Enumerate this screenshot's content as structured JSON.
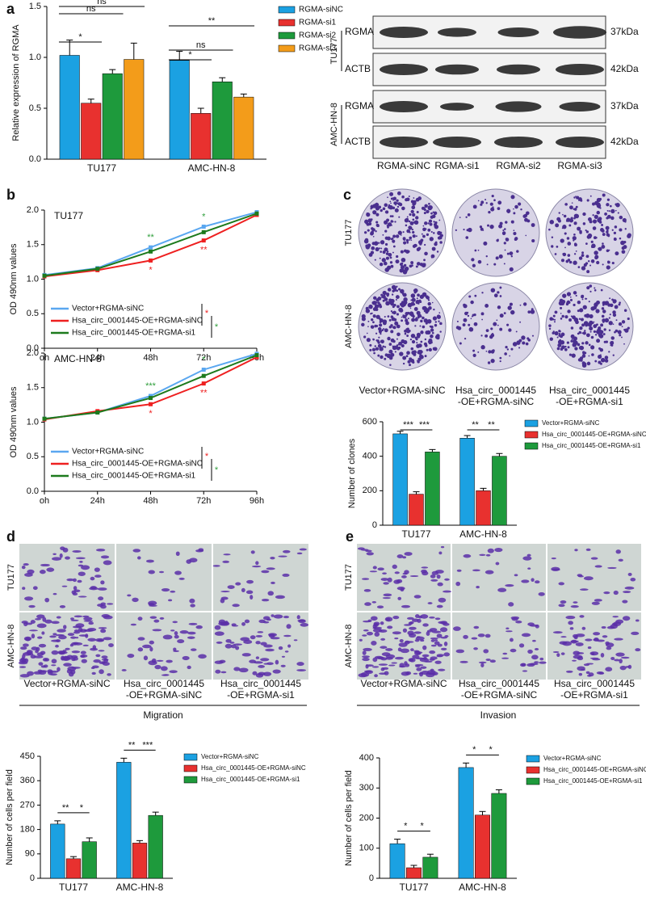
{
  "panel_labels": [
    "a",
    "b",
    "c",
    "d",
    "e"
  ],
  "western_blot": {
    "rows": [
      {
        "cell": "TU177",
        "proteins": [
          {
            "name": "RGMA",
            "size": "37kDa"
          },
          {
            "name": "ACTB",
            "size": "42kDa"
          }
        ]
      },
      {
        "cell": "AMC-HN-8",
        "proteins": [
          {
            "name": "RGMA",
            "size": "37kDa"
          },
          {
            "name": "ACTB",
            "size": "42kDa"
          }
        ]
      }
    ],
    "lanes": [
      "RGMA-siNC",
      "RGMA-si1",
      "RGMA-si2",
      "RGMA-si3"
    ]
  },
  "colony_images": {
    "rows": [
      "TU177",
      "AMC-HN-8"
    ],
    "columns": [
      [
        "Vector+RGMA-siNC"
      ],
      [
        "Hsa_circ_0001445",
        "-OE+RGMA-siNC"
      ],
      [
        "Hsa_circ_0001445",
        "-OE+RGMA-si1"
      ]
    ]
  },
  "migration_images": {
    "rows": [
      "TU177",
      "AMC-HN-8"
    ],
    "columns": [
      [
        "Vector+RGMA-siNC"
      ],
      [
        "Hsa_circ_0001445",
        "-OE+RGMA-siNC"
      ],
      [
        "Hsa_circ_0001445",
        "-OE+RGMA-si1"
      ]
    ]
  },
  "invasion_images": {
    "rows": [
      "TU177",
      "AMC-HN-8"
    ],
    "columns": [
      [
        "Vector+RGMA-siNC"
      ],
      [
        "Hsa_circ_0001445",
        "-OE+RGMA-siNC"
      ],
      [
        "Hsa_circ_0001445",
        "-OE+RGMA-si1"
      ]
    ]
  },
  "chart_data": [
    {
      "type": "bar",
      "ylabel": "Relative expression of RGMA",
      "categories": [
        "TU177",
        "AMC-HN-8"
      ],
      "series": [
        {
          "name": "RGMA-siNC",
          "color": "#1ba1e2",
          "values": [
            1.02,
            0.97
          ],
          "errors": [
            0.15,
            0.09
          ]
        },
        {
          "name": "RGMA-si1",
          "color": "#e8312f",
          "values": [
            0.55,
            0.45
          ],
          "errors": [
            0.04,
            0.05
          ]
        },
        {
          "name": "RGMA-si2",
          "color": "#1e9a3c",
          "values": [
            0.84,
            0.76
          ],
          "errors": [
            0.04,
            0.04
          ]
        },
        {
          "name": "RGMA-si3",
          "color": "#f39c1a",
          "values": [
            0.98,
            0.61
          ],
          "errors": [
            0.16,
            0.03
          ]
        }
      ],
      "ylim": [
        0,
        1.5
      ],
      "yticks": [
        {
          "value": 0,
          "label": "0.0"
        },
        0.5,
        {
          "value": 1,
          "label": "1.0"
        },
        1.5
      ],
      "annotations": [
        "*",
        "ns",
        "ns",
        "**",
        "*",
        "ns"
      ]
    },
    {
      "type": "line",
      "title": "TU177",
      "ylabel": "OD  490nm  values",
      "categories": [
        "oh",
        "24h",
        "48h",
        "72h",
        "96h"
      ],
      "series": [
        {
          "name": "Vector+RGMA-siNC",
          "color": "#5aa7f0",
          "values": [
            1.06,
            1.16,
            1.46,
            1.76,
            1.97
          ]
        },
        {
          "name": "Hsa_circ_0001445-OE+RGMA-siNC",
          "color": "#ee2020",
          "values": [
            1.04,
            1.13,
            1.27,
            1.56,
            1.93
          ]
        },
        {
          "name": "Hsa_circ_0001445-OE+RGMA-si1",
          "color": "#1d7a1d",
          "values": [
            1.05,
            1.15,
            1.4,
            1.68,
            1.95
          ]
        }
      ],
      "ylim": [
        0,
        2
      ],
      "yticks": [
        {
          "value": 0,
          "label": "0.0"
        },
        0.5,
        {
          "value": 1,
          "label": "1.0"
        },
        1.5,
        {
          "value": 2,
          "label": "2.0"
        }
      ],
      "annotations": [
        {
          "text": "**",
          "color": "#2e9e3a"
        },
        {
          "text": "*",
          "color": "#ee2020"
        },
        {
          "text": "*",
          "color": "#2e9e3a"
        },
        {
          "text": "**",
          "color": "#ee2020"
        },
        {
          "text": "*",
          "color": "#ee2020"
        },
        {
          "text": "*",
          "color": "#2e9e3a"
        }
      ]
    },
    {
      "type": "line",
      "title": "AMC-HN-8",
      "ylabel": "OD  490nm  values",
      "categories": [
        "oh",
        "24h",
        "48h",
        "72h",
        "96h"
      ],
      "series": [
        {
          "name": "Vector+RGMA-siNC",
          "color": "#5aa7f0",
          "values": [
            1.05,
            1.14,
            1.38,
            1.76,
            1.99
          ]
        },
        {
          "name": "Hsa_circ_0001445-OE+RGMA-siNC",
          "color": "#ee2020",
          "values": [
            1.04,
            1.16,
            1.26,
            1.56,
            1.94
          ]
        },
        {
          "name": "Hsa_circ_0001445-OE+RGMA-si1",
          "color": "#1d7a1d",
          "values": [
            1.05,
            1.14,
            1.35,
            1.67,
            1.97
          ]
        }
      ],
      "ylim": [
        0,
        2
      ],
      "yticks": [
        {
          "value": 0,
          "label": "0.0"
        },
        0.5,
        {
          "value": 1,
          "label": "1.0"
        },
        1.5,
        {
          "value": 2,
          "label": "2.0"
        }
      ],
      "annotations": [
        {
          "text": "***",
          "color": "#2e9e3a"
        },
        {
          "text": "*",
          "color": "#ee2020"
        },
        {
          "text": "*",
          "color": "#2e9e3a"
        },
        {
          "text": "**",
          "color": "#ee2020"
        },
        {
          "text": "*",
          "color": "#ee2020"
        },
        {
          "text": "*",
          "color": "#2e9e3a"
        }
      ]
    },
    {
      "type": "bar",
      "ylabel": "Number  of  clones",
      "categories": [
        "TU177",
        "AMC-HN-8"
      ],
      "series": [
        {
          "name": "Vector+RGMA-siNC",
          "color": "#1ba1e2",
          "values": [
            530,
            505
          ],
          "errors": [
            15,
            15
          ]
        },
        {
          "name": "Hsa_circ_0001445-OE+RGMA-siNC",
          "color": "#e8312f",
          "values": [
            180,
            200
          ],
          "errors": [
            14,
            14
          ]
        },
        {
          "name": "Hsa_circ_0001445-OE+RGMA-si1",
          "color": "#1e9a3c",
          "values": [
            425,
            400
          ],
          "errors": [
            14,
            16
          ]
        }
      ],
      "ylim": [
        0,
        600
      ],
      "yticks": [
        0,
        200,
        400,
        600
      ],
      "annotations": [
        "***",
        "***",
        "**",
        "**"
      ]
    },
    {
      "type": "bar",
      "title": "Migration",
      "ylabel": "Number  of  cells  per  field",
      "categories": [
        "TU177",
        "AMC-HN-8"
      ],
      "series": [
        {
          "name": "Vector+RGMA-siNC",
          "color": "#1ba1e2",
          "values": [
            200,
            428
          ],
          "errors": [
            12,
            15
          ]
        },
        {
          "name": "Hsa_circ_0001445-OE+RGMA-siNC",
          "color": "#e8312f",
          "values": [
            72,
            130
          ],
          "errors": [
            8,
            9
          ]
        },
        {
          "name": "Hsa_circ_0001445-OE+RGMA-si1",
          "color": "#1e9a3c",
          "values": [
            135,
            232
          ],
          "errors": [
            14,
            12
          ]
        }
      ],
      "ylim": [
        0,
        450
      ],
      "yticks": [
        0,
        90,
        180,
        270,
        360,
        450
      ],
      "annotations": [
        "**",
        "*",
        "**",
        "***"
      ]
    },
    {
      "type": "bar",
      "title": "Invasion",
      "ylabel": "Number  of  cells  per  field",
      "categories": [
        "TU177",
        "AMC-HN-8"
      ],
      "series": [
        {
          "name": "Vector+RGMA-siNC",
          "color": "#1ba1e2",
          "values": [
            115,
            368
          ],
          "errors": [
            15,
            15
          ]
        },
        {
          "name": "Hsa_circ_0001445-OE+RGMA-siNC",
          "color": "#e8312f",
          "values": [
            35,
            210
          ],
          "errors": [
            8,
            12
          ]
        },
        {
          "name": "Hsa_circ_0001445-OE+RGMA-si1",
          "color": "#1e9a3c",
          "values": [
            70,
            282
          ],
          "errors": [
            10,
            12
          ]
        }
      ],
      "ylim": [
        0,
        400
      ],
      "yticks": [
        0,
        100,
        200,
        300,
        400
      ],
      "annotations": [
        "*",
        "*",
        "*",
        "*"
      ]
    }
  ]
}
